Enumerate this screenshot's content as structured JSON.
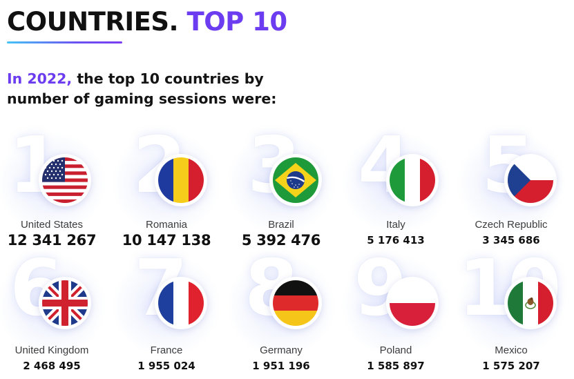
{
  "header": {
    "title_main": "COUNTRIES.",
    "title_accent": "TOP 10",
    "accent_color": "#6b3cf0"
  },
  "intro": {
    "year": "In 2022,",
    "line1_rest": "the top 10 countries by",
    "line2": "number of gaming sessions were:"
  },
  "countries": [
    {
      "rank": "1",
      "name": "United States",
      "value": "12 341 267",
      "flag": "us-flag-icon"
    },
    {
      "rank": "2",
      "name": "Romania",
      "value": "10 147 138",
      "flag": "romania-flag-icon"
    },
    {
      "rank": "3",
      "name": "Brazil",
      "value": "5 392 476",
      "flag": "brazil-flag-icon"
    },
    {
      "rank": "4",
      "name": "Italy",
      "value": "5 176 413",
      "flag": "italy-flag-icon"
    },
    {
      "rank": "5",
      "name": "Czech Republic",
      "value": "3 345 686",
      "flag": "czech-flag-icon"
    },
    {
      "rank": "6",
      "name": "United Kingdom",
      "value": "2 468 495",
      "flag": "uk-flag-icon"
    },
    {
      "rank": "7",
      "name": "France",
      "value": "1 955 024",
      "flag": "france-flag-icon"
    },
    {
      "rank": "8",
      "name": "Germany",
      "value": "1 951 196",
      "flag": "germany-flag-icon"
    },
    {
      "rank": "9",
      "name": "Poland",
      "value": "1 585 897",
      "flag": "poland-flag-icon"
    },
    {
      "rank": "10",
      "name": "Mexico",
      "value": "1 575 207",
      "flag": "mexico-flag-icon"
    }
  ]
}
